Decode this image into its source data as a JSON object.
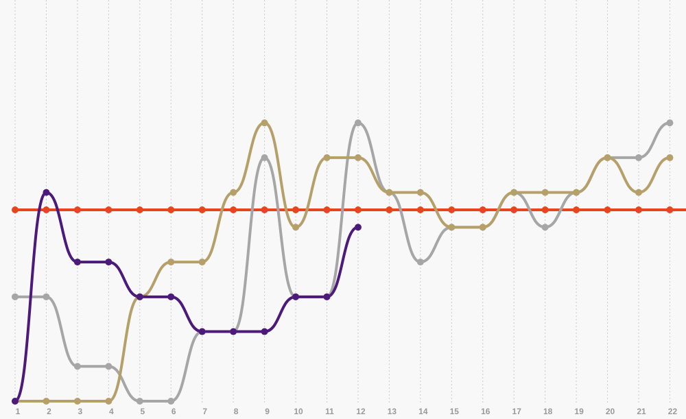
{
  "chart_data": {
    "type": "line",
    "title": "",
    "xlabel": "",
    "ylabel": "",
    "x": [
      1,
      2,
      3,
      4,
      5,
      6,
      7,
      8,
      9,
      10,
      11,
      12,
      13,
      14,
      15,
      16,
      17,
      18,
      19,
      20,
      21,
      22
    ],
    "x_tick_labels": [
      "1",
      "2",
      "3",
      "4",
      "5",
      "6",
      "7",
      "8",
      "9",
      "10",
      "11",
      "12",
      "13",
      "14",
      "15",
      "16",
      "17",
      "18",
      "19",
      "20",
      "21",
      "22"
    ],
    "ylim": [
      0,
      11
    ],
    "y_axis_visible": false,
    "grid": "vertical dotted",
    "legend": "none",
    "series": [
      {
        "color": "#e8441e",
        "values": [
          5.5,
          5.5,
          5.5,
          5.5,
          5.5,
          5.5,
          5.5,
          5.5,
          5.5,
          5.5,
          5.5,
          5.5,
          5.5,
          5.5,
          5.5,
          5.5,
          5.5,
          5.5,
          5.5,
          5.5,
          5.5,
          5.5
        ],
        "extends_to_right_edge": true
      },
      {
        "color": "#a6a6a6",
        "values": [
          3,
          3,
          1,
          1,
          0,
          0,
          2,
          2,
          7,
          3,
          3,
          8,
          6,
          4,
          5,
          5,
          6,
          5,
          6,
          7,
          7,
          8
        ]
      },
      {
        "color": "#b5a06a",
        "values": [
          0,
          0,
          0,
          0,
          3,
          4,
          4,
          6,
          8,
          5,
          7,
          7,
          6,
          6,
          5,
          5,
          6,
          6,
          6,
          7,
          6,
          7
        ]
      },
      {
        "color": "#4b1a7a",
        "values": [
          0,
          6,
          4,
          4,
          3,
          3,
          2,
          2,
          2,
          3,
          3,
          5,
          null,
          null,
          null,
          null,
          null,
          null,
          null,
          null,
          null,
          null
        ]
      }
    ]
  }
}
